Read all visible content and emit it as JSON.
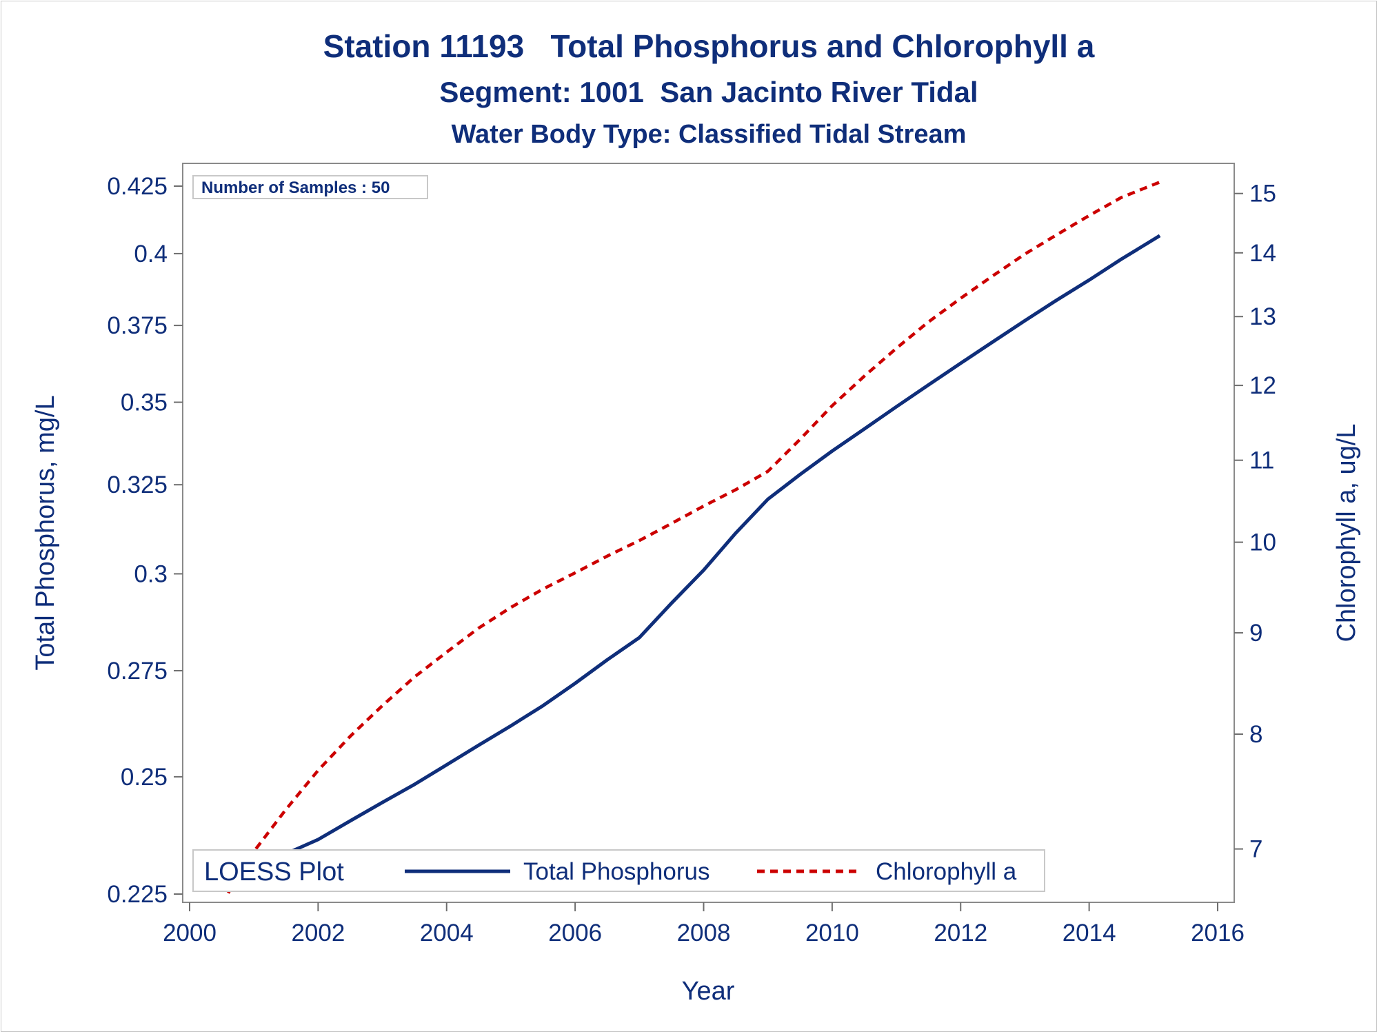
{
  "chart_data": {
    "type": "line",
    "title": "Station 11193   Total Phosphorus and Chlorophyll a",
    "subtitle": "Segment: 1001  San Jacinto River Tidal",
    "subtitle2": "Water Body Type: Classified Tidal Stream",
    "xlabel": "Year",
    "ylabel": "Total Phosphorus, mg/L",
    "y2label": "Chlorophyll a, ug/L",
    "xlim": [
      2000,
      2016
    ],
    "ylim": [
      0.225,
      0.425
    ],
    "y2lim": [
      6.6,
      15.3
    ],
    "y_scale": "log",
    "y2_scale": "log",
    "x_ticks": [
      "2000",
      "2002",
      "2004",
      "2006",
      "2008",
      "2010",
      "2012",
      "2014",
      "2016"
    ],
    "y_ticks": [
      "0.225",
      "0.25",
      "0.275",
      "0.3",
      "0.325",
      "0.35",
      "0.375",
      "0.4",
      "0.425"
    ],
    "y2_ticks": [
      "7",
      "8",
      "9",
      "10",
      "11",
      "12",
      "13",
      "14",
      "15"
    ],
    "inset_label": "Number of Samples : 50",
    "legend": {
      "title": "LOESS Plot",
      "placement": "bottom-left inside",
      "entries": [
        "Total Phosphorus",
        "Chlorophyll a"
      ]
    },
    "series": [
      {
        "name": "Total Phosphorus",
        "axis": "left",
        "color": "#0f2e7a",
        "style": "solid",
        "x": [
          2000.6,
          2001.0,
          2001.5,
          2002.0,
          2002.5,
          2003.0,
          2003.5,
          2004.0,
          2004.5,
          2005.0,
          2005.5,
          2006.0,
          2006.5,
          2007.0,
          2007.5,
          2008.0,
          2008.5,
          2009.0,
          2009.5,
          2010.0,
          2010.5,
          2011.0,
          2011.5,
          2012.0,
          2012.5,
          2013.0,
          2013.5,
          2014.0,
          2014.5,
          2015.1
        ],
        "values": [
          0.2273,
          0.2303,
          0.2333,
          0.2363,
          0.2403,
          0.2443,
          0.2483,
          0.2527,
          0.2572,
          0.2617,
          0.2665,
          0.2719,
          0.2777,
          0.2833,
          0.2922,
          0.301,
          0.3112,
          0.3208,
          0.328,
          0.335,
          0.3417,
          0.3486,
          0.3555,
          0.3625,
          0.3695,
          0.3766,
          0.3837,
          0.3906,
          0.398,
          0.4065
        ]
      },
      {
        "name": "Chlorophyll a",
        "axis": "right",
        "color": "#cc0000",
        "style": "dashed",
        "x": [
          2000.6,
          2001.0,
          2001.5,
          2002.0,
          2002.5,
          2003.0,
          2003.5,
          2004.0,
          2004.5,
          2005.0,
          2005.5,
          2006.0,
          2006.5,
          2007.0,
          2007.5,
          2008.0,
          2008.5,
          2009.0,
          2009.5,
          2010.0,
          2010.5,
          2011.0,
          2011.5,
          2012.0,
          2012.5,
          2013.0,
          2013.5,
          2014.0,
          2014.5,
          2015.1
        ],
        "values": [
          6.65,
          6.98,
          7.33,
          7.67,
          7.98,
          8.27,
          8.55,
          8.8,
          9.05,
          9.27,
          9.47,
          9.65,
          9.84,
          10.02,
          10.22,
          10.43,
          10.63,
          10.86,
          11.27,
          11.72,
          12.13,
          12.53,
          12.92,
          13.28,
          13.63,
          13.98,
          14.3,
          14.62,
          14.93,
          15.2
        ]
      }
    ]
  }
}
